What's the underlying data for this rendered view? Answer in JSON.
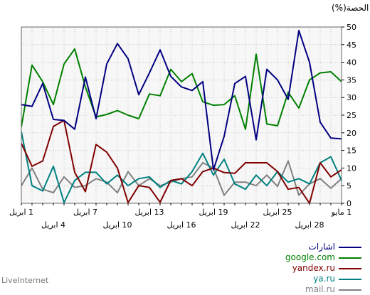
{
  "chart_data": {
    "type": "line",
    "ylabel": "الحصة(%)",
    "ylim": [
      0,
      50
    ],
    "yticks": [
      0,
      5,
      10,
      15,
      20,
      25,
      30,
      35,
      40,
      45,
      50
    ],
    "grid": true,
    "x_count": 31,
    "x_tick_labels_top": [
      {
        "i": 0,
        "label": "1 مايو"
      },
      {
        "i": 6,
        "label": "25 ابريل"
      },
      {
        "i": 12,
        "label": "19 ابريل"
      },
      {
        "i": 18,
        "label": "13 ابريل"
      },
      {
        "i": 24,
        "label": "7 ابريل"
      },
      {
        "i": 30,
        "label": "1 ابريل"
      }
    ],
    "x_tick_labels_bottom": [
      {
        "i": 3,
        "label": "28 ابريل"
      },
      {
        "i": 9,
        "label": "22 ابريل"
      },
      {
        "i": 15,
        "label": "16 ابريل"
      },
      {
        "i": 21,
        "label": "10 ابريل"
      },
      {
        "i": 27,
        "label": "4 ابريل"
      }
    ],
    "series": [
      {
        "name": "اشارات",
        "color": "#000080",
        "values": [
          18.3,
          18.5,
          23,
          40,
          49,
          29.5,
          35,
          38,
          18,
          36,
          34,
          19,
          9.5,
          34.5,
          32,
          33,
          36,
          43.5,
          37,
          30.8,
          41,
          45.3,
          39.5,
          24,
          35.8,
          21,
          23.5,
          23.8,
          34,
          27.5,
          28
        ]
      },
      {
        "name": "google.com",
        "color": "#008000",
        "values": [
          34.5,
          37.3,
          37,
          35,
          27,
          31.5,
          22,
          22.5,
          42.3,
          21,
          30.5,
          28,
          27.8,
          28.8,
          36.8,
          34.5,
          38,
          30.5,
          31,
          24,
          25,
          26.3,
          25.2,
          24.5,
          33,
          43.8,
          39.5,
          28,
          34.5,
          39.2,
          21.7
        ]
      },
      {
        "name": "yandex.ru",
        "color": "#800000",
        "values": [
          9.5,
          7.5,
          11.5,
          0,
          4.5,
          4,
          9,
          11.5,
          11.5,
          11.5,
          8.5,
          8.7,
          10,
          9,
          5,
          7,
          6.5,
          0.3,
          4.5,
          5,
          0.2,
          10,
          14.5,
          16.7,
          3.3,
          8.8,
          23.5,
          21.8,
          12,
          10.5,
          17
        ]
      },
      {
        "name": "ya.ru",
        "color": "#008080",
        "values": [
          6.5,
          13.2,
          11.5,
          5.5,
          7,
          6,
          9,
          5,
          8,
          4,
          5.5,
          12.5,
          8,
          14.2,
          9,
          5.5,
          6.5,
          4.5,
          7.5,
          7,
          5,
          8,
          5.5,
          8.8,
          8.8,
          6.5,
          0.2,
          10.5,
          3.5,
          5,
          20.3
        ]
      },
      {
        "name": "mail.ru",
        "color": "#808080",
        "values": [
          7,
          4.3,
          7,
          5.5,
          2.3,
          12,
          4.8,
          8,
          5,
          6,
          6,
          2.3,
          10,
          11.5,
          7.5,
          7,
          6,
          5,
          7,
          5,
          9,
          3,
          6,
          7,
          5,
          4.5,
          7.5,
          3,
          4,
          10,
          5
        ]
      }
    ]
  },
  "brand": "LiveInternet"
}
